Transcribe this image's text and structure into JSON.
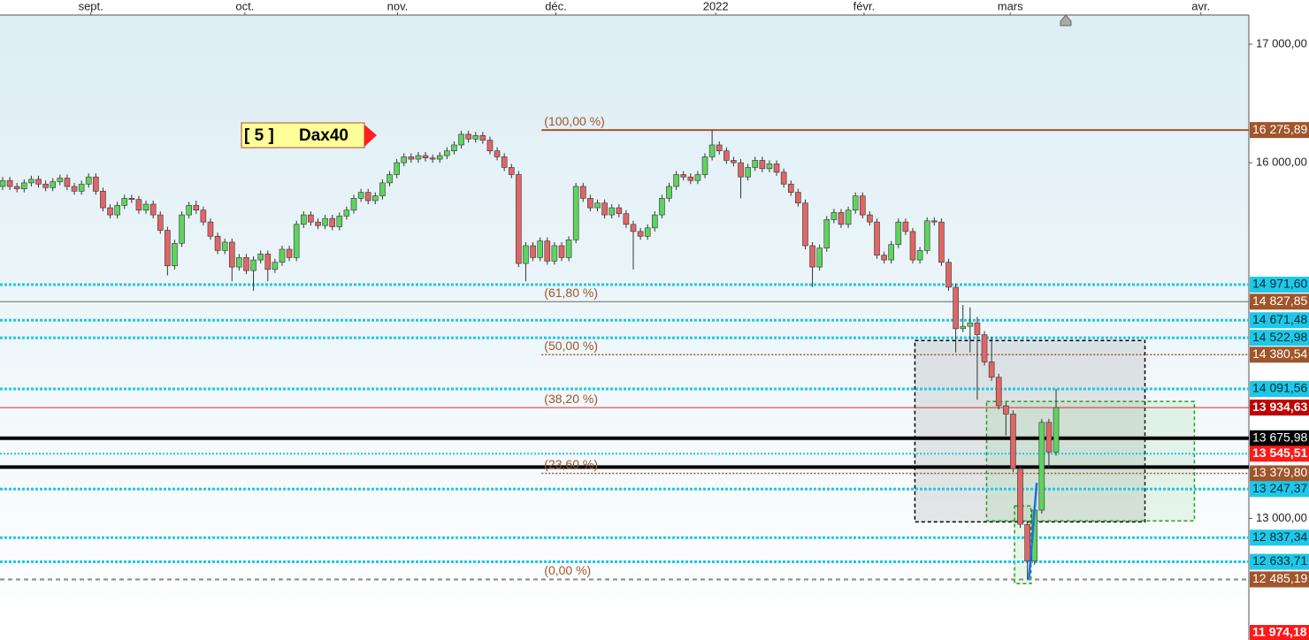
{
  "chart_data": {
    "type": "candlestick",
    "up_color": "#5fd35f",
    "down_color": "#e06666",
    "xlim": [
      -0.37,
      173.9
    ],
    "xticks": [
      {
        "value": 12.3,
        "label": "sept."
      },
      {
        "value": 33.8,
        "label": "oct."
      },
      {
        "value": 55.1,
        "label": "nov."
      },
      {
        "value": 77.2,
        "label": "déc."
      },
      {
        "value": 99.5,
        "label": "2022"
      },
      {
        "value": 120.2,
        "label": "févr."
      },
      {
        "value": 140.6,
        "label": "mars"
      },
      {
        "value": 167.2,
        "label": "avr."
      }
    ],
    "ylim": [
      11974,
      17246
    ],
    "yticks": [
      {
        "value": 17000,
        "label": "17 000,00"
      },
      {
        "value": 16000,
        "label": "16 000,00"
      },
      {
        "value": 13000,
        "label": "13 000,00"
      }
    ],
    "fib_start": 75.2,
    "annotation": {
      "number": "[ 5 ]",
      "name": "Dax40"
    },
    "levels": [
      {
        "value": 16275.89,
        "label": "16 275,89",
        "color": "#a0552a",
        "style": "solid",
        "fib": "(100,00 %)"
      },
      {
        "value": 14971.6,
        "label": "14 971,60",
        "color": "#1ec8e8",
        "style": "dotted"
      },
      {
        "value": 14827.85,
        "label": "14 827,85",
        "color": "#a0552a",
        "style": "thin",
        "fib": "(61,80 %)"
      },
      {
        "value": 14671.48,
        "label": "14 671,48",
        "color": "#1ec8e8",
        "style": "dotted"
      },
      {
        "value": 14522.98,
        "label": "14 522,98",
        "color": "#1ec8e8",
        "style": "dotted"
      },
      {
        "value": 14380.54,
        "label": "14 380,54",
        "color": "#a0552a",
        "style": "fibdot",
        "fib": "(50,00 %)"
      },
      {
        "value": 14091.56,
        "label": "14 091,56",
        "color": "#1ec8e8",
        "style": "dotted"
      },
      {
        "value": 13934.63,
        "label": "13 934,63",
        "color": "#c00000",
        "style": "thin",
        "fib": "(38,20 %)"
      },
      {
        "value": 13675.98,
        "label": "13 675,98",
        "color": "#000000",
        "style": "thick"
      },
      {
        "value": 13545.51,
        "label": "13 545,51",
        "color": "#ff1a1a",
        "style": "dotted-thin"
      },
      {
        "value": 13379.8,
        "label": "13 379,80",
        "color": "#a0552a",
        "style": "fibdot",
        "fib": "(23,60 %)"
      },
      {
        "value": 13247.37,
        "label": "13 247,37",
        "color": "#1ec8e8",
        "style": "dotted"
      },
      {
        "value": 12837.34,
        "label": "12 837,34",
        "color": "#1ec8e8",
        "style": "dotted"
      },
      {
        "value": 12633.71,
        "label": "12 633,71",
        "color": "#1ec8e8",
        "style": "dotted"
      },
      {
        "value": 12485.19,
        "label": "12 485,19",
        "color": "#a0552a",
        "style": "dashed",
        "fib": "(0,00 %)"
      },
      {
        "value": 11974.18,
        "label": "11 974,18",
        "color": "#ff1a1a",
        "style": "none"
      }
    ],
    "lines": [
      13433
    ],
    "boxes": [
      {
        "x": [
          127.3,
          159.4
        ],
        "y": [
          12970,
          14500
        ],
        "fill": "rgba(120,120,120,0.17)",
        "stroke": "#000000"
      },
      {
        "x": [
          137.3,
          166.3
        ],
        "y": [
          12979,
          13986
        ],
        "fill": "rgba(120,200,120,0.15)",
        "stroke": "#22a022"
      },
      {
        "x": [
          141.2,
          143.5
        ],
        "y": [
          12449,
          13105
        ],
        "fill": "rgba(120,200,120,0.15)",
        "stroke": "#22a022"
      }
    ],
    "trend": {
      "x": [
        143.2,
        144.3
      ],
      "y": [
        12485,
        13300
      ],
      "color": "#1e6ee8"
    },
    "candles": [
      [
        15800,
        15880,
        15770,
        15850
      ],
      [
        15850,
        15880,
        15770,
        15800
      ],
      [
        15800,
        15830,
        15750,
        15780
      ],
      [
        15780,
        15860,
        15750,
        15830
      ],
      [
        15830,
        15890,
        15800,
        15860
      ],
      [
        15860,
        15890,
        15790,
        15820
      ],
      [
        15820,
        15850,
        15760,
        15790
      ],
      [
        15790,
        15870,
        15760,
        15840
      ],
      [
        15840,
        15900,
        15810,
        15870
      ],
      [
        15870,
        15900,
        15770,
        15800
      ],
      [
        15800,
        15830,
        15730,
        15760
      ],
      [
        15760,
        15850,
        15730,
        15820
      ],
      [
        15820,
        15910,
        15790,
        15880
      ],
      [
        15880,
        15910,
        15730,
        15760
      ],
      [
        15760,
        15790,
        15590,
        15620
      ],
      [
        15620,
        15650,
        15530,
        15560
      ],
      [
        15560,
        15670,
        15530,
        15640
      ],
      [
        15640,
        15730,
        15610,
        15700
      ],
      [
        15700,
        15730,
        15660,
        15690
      ],
      [
        15690,
        15720,
        15570,
        15600
      ],
      [
        15600,
        15680,
        15570,
        15650
      ],
      [
        15650,
        15680,
        15530,
        15560
      ],
      [
        15560,
        15590,
        15400,
        15430
      ],
      [
        15430,
        15460,
        15050,
        15130
      ],
      [
        15130,
        15350,
        15100,
        15320
      ],
      [
        15320,
        15590,
        15290,
        15560
      ],
      [
        15560,
        15670,
        15530,
        15640
      ],
      [
        15640,
        15680,
        15570,
        15600
      ],
      [
        15600,
        15630,
        15470,
        15500
      ],
      [
        15500,
        15530,
        15350,
        15380
      ],
      [
        15380,
        15410,
        15230,
        15260
      ],
      [
        15260,
        15360,
        15230,
        15330
      ],
      [
        15330,
        15360,
        15000,
        15120
      ],
      [
        15120,
        15230,
        15090,
        15200
      ],
      [
        15200,
        15230,
        15060,
        15090
      ],
      [
        15090,
        15210,
        14920,
        15180
      ],
      [
        15180,
        15260,
        15150,
        15230
      ],
      [
        15230,
        15260,
        15000,
        15100
      ],
      [
        15100,
        15190,
        15070,
        15160
      ],
      [
        15160,
        15300,
        15130,
        15270
      ],
      [
        15270,
        15300,
        15170,
        15200
      ],
      [
        15200,
        15510,
        15170,
        15480
      ],
      [
        15480,
        15590,
        15450,
        15560
      ],
      [
        15560,
        15590,
        15470,
        15500
      ],
      [
        15500,
        15530,
        15440,
        15470
      ],
      [
        15470,
        15560,
        15440,
        15530
      ],
      [
        15530,
        15560,
        15430,
        15460
      ],
      [
        15460,
        15580,
        15430,
        15550
      ],
      [
        15550,
        15630,
        15520,
        15600
      ],
      [
        15600,
        15730,
        15570,
        15700
      ],
      [
        15700,
        15780,
        15670,
        15750
      ],
      [
        15750,
        15780,
        15650,
        15680
      ],
      [
        15680,
        15750,
        15650,
        15720
      ],
      [
        15720,
        15860,
        15690,
        15830
      ],
      [
        15830,
        15930,
        15800,
        15900
      ],
      [
        15900,
        16030,
        15870,
        16000
      ],
      [
        16000,
        16080,
        15970,
        16050
      ],
      [
        16050,
        16080,
        16000,
        16030
      ],
      [
        16030,
        16090,
        16000,
        16060
      ],
      [
        16060,
        16090,
        16010,
        16040
      ],
      [
        16040,
        16070,
        16000,
        16030
      ],
      [
        16030,
        16090,
        16000,
        16060
      ],
      [
        16060,
        16130,
        16030,
        16100
      ],
      [
        16100,
        16180,
        16070,
        16150
      ],
      [
        16150,
        16270,
        16120,
        16240
      ],
      [
        16240,
        16270,
        16170,
        16200
      ],
      [
        16200,
        16260,
        16170,
        16230
      ],
      [
        16230,
        16260,
        16160,
        16190
      ],
      [
        16190,
        16220,
        16070,
        16100
      ],
      [
        16100,
        16130,
        16020,
        16050
      ],
      [
        16050,
        16080,
        15930,
        15960
      ],
      [
        15960,
        15990,
        15870,
        15900
      ],
      [
        15900,
        15930,
        15120,
        15150
      ],
      [
        15150,
        15330,
        15000,
        15300
      ],
      [
        15300,
        15330,
        15170,
        15200
      ],
      [
        15200,
        15370,
        15170,
        15340
      ],
      [
        15340,
        15370,
        15140,
        15170
      ],
      [
        15170,
        15330,
        15140,
        15300
      ],
      [
        15300,
        15330,
        15170,
        15200
      ],
      [
        15200,
        15380,
        15170,
        15350
      ],
      [
        15350,
        15830,
        15320,
        15800
      ],
      [
        15800,
        15830,
        15670,
        15700
      ],
      [
        15700,
        15730,
        15590,
        15620
      ],
      [
        15620,
        15690,
        15590,
        15660
      ],
      [
        15660,
        15690,
        15530,
        15560
      ],
      [
        15560,
        15650,
        15530,
        15620
      ],
      [
        15620,
        15650,
        15540,
        15570
      ],
      [
        15570,
        15600,
        15450,
        15480
      ],
      [
        15480,
        15510,
        15100,
        15420
      ],
      [
        15420,
        15450,
        15350,
        15380
      ],
      [
        15380,
        15480,
        15350,
        15450
      ],
      [
        15450,
        15590,
        15420,
        15560
      ],
      [
        15560,
        15730,
        15530,
        15700
      ],
      [
        15700,
        15830,
        15670,
        15800
      ],
      [
        15800,
        15930,
        15770,
        15900
      ],
      [
        15900,
        15930,
        15850,
        15880
      ],
      [
        15880,
        15910,
        15820,
        15850
      ],
      [
        15850,
        15930,
        15820,
        15900
      ],
      [
        15900,
        16080,
        15870,
        16050
      ],
      [
        16050,
        16275,
        16020,
        16150
      ],
      [
        16150,
        16180,
        16070,
        16100
      ],
      [
        16100,
        16130,
        15990,
        16020
      ],
      [
        16020,
        16050,
        15970,
        16000
      ],
      [
        16000,
        16030,
        15700,
        15880
      ],
      [
        15880,
        15990,
        15850,
        15960
      ],
      [
        15960,
        16050,
        15930,
        16020
      ],
      [
        16020,
        16050,
        15920,
        15950
      ],
      [
        15950,
        16020,
        15920,
        15990
      ],
      [
        15990,
        16020,
        15890,
        15920
      ],
      [
        15920,
        15950,
        15790,
        15820
      ],
      [
        15820,
        15850,
        15720,
        15750
      ],
      [
        15750,
        15780,
        15630,
        15660
      ],
      [
        15660,
        15690,
        15270,
        15300
      ],
      [
        15300,
        15330,
        14950,
        15120
      ],
      [
        15120,
        15310,
        15090,
        15280
      ],
      [
        15280,
        15550,
        15250,
        15520
      ],
      [
        15520,
        15610,
        15490,
        15580
      ],
      [
        15580,
        15610,
        15450,
        15480
      ],
      [
        15480,
        15630,
        15450,
        15600
      ],
      [
        15600,
        15750,
        15570,
        15720
      ],
      [
        15720,
        15750,
        15530,
        15560
      ],
      [
        15560,
        15590,
        15470,
        15500
      ],
      [
        15500,
        15530,
        15190,
        15220
      ],
      [
        15220,
        15250,
        15150,
        15180
      ],
      [
        15180,
        15340,
        15150,
        15310
      ],
      [
        15310,
        15530,
        15280,
        15500
      ],
      [
        15500,
        15530,
        15390,
        15420
      ],
      [
        15420,
        15450,
        15150,
        15180
      ],
      [
        15180,
        15290,
        15150,
        15260
      ],
      [
        15260,
        15540,
        15230,
        15510
      ],
      [
        15510,
        15540,
        15470,
        15500
      ],
      [
        15500,
        15530,
        15130,
        15160
      ],
      [
        15160,
        15190,
        14920,
        14950
      ],
      [
        14950,
        14980,
        14400,
        14600
      ],
      [
        14600,
        14800,
        14570,
        14620
      ],
      [
        14620,
        14780,
        14400,
        14650
      ],
      [
        14650,
        14700,
        14000,
        14550
      ],
      [
        14550,
        14580,
        14290,
        14320
      ],
      [
        14320,
        14530,
        14160,
        14190
      ],
      [
        14190,
        14220,
        13920,
        13950
      ],
      [
        13950,
        13980,
        13700,
        13880
      ],
      [
        13880,
        13910,
        13390,
        13420
      ],
      [
        13420,
        13450,
        12920,
        12950
      ],
      [
        12950,
        12980,
        12485,
        12640
      ],
      [
        12640,
        13100,
        12610,
        13070
      ],
      [
        13070,
        13840,
        13040,
        13810
      ],
      [
        13810,
        13840,
        13420,
        13560
      ],
      [
        13560,
        14091,
        13530,
        13934.63
      ]
    ]
  }
}
